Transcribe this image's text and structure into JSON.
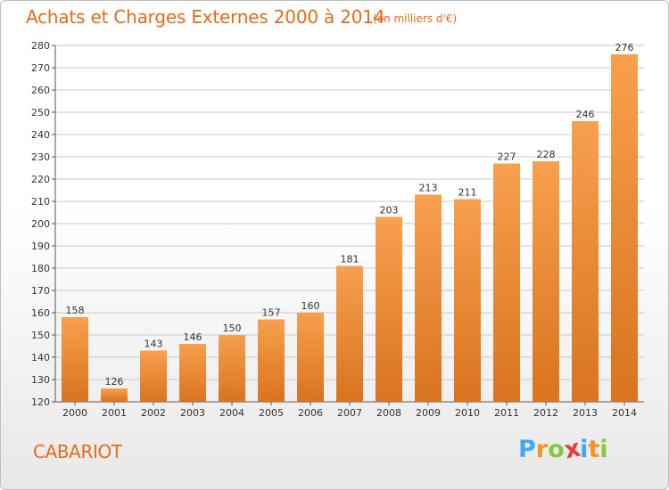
{
  "header": {
    "title": "Achats et Charges Externes 2000 à 2014",
    "unit": "(en milliers d'€)"
  },
  "footer": {
    "commune": "CABARIOT",
    "logo_letters": [
      {
        "char": "P",
        "color": "#3fa9f5"
      },
      {
        "char": "r",
        "color": "#f7931e"
      },
      {
        "char": "o",
        "color": "#8cc63f"
      },
      {
        "char": "x",
        "color": "#e8393f"
      },
      {
        "char": "i",
        "color": "#3fa9f5"
      },
      {
        "char": "t",
        "color": "#f7931e"
      },
      {
        "char": "i",
        "color": "#8cc63f"
      }
    ]
  },
  "colors": {
    "title": "#e36c1b",
    "bar_light": "#f7a04e",
    "bar_dark": "#d9731f",
    "grid": "#c8c8c8"
  },
  "chart_data": {
    "type": "bar",
    "categories": [
      "2000",
      "2001",
      "2002",
      "2003",
      "2004",
      "2005",
      "2006",
      "2007",
      "2008",
      "2009",
      "2010",
      "2011",
      "2012",
      "2013",
      "2014"
    ],
    "values": [
      158,
      126,
      143,
      146,
      150,
      157,
      160,
      181,
      203,
      213,
      211,
      227,
      228,
      246,
      276
    ],
    "ylim": [
      120,
      280
    ],
    "yticks": [
      120,
      130,
      140,
      150,
      160,
      170,
      180,
      190,
      200,
      210,
      220,
      230,
      240,
      250,
      260,
      270,
      280
    ],
    "grid": true,
    "xlabel": "",
    "ylabel": ""
  }
}
